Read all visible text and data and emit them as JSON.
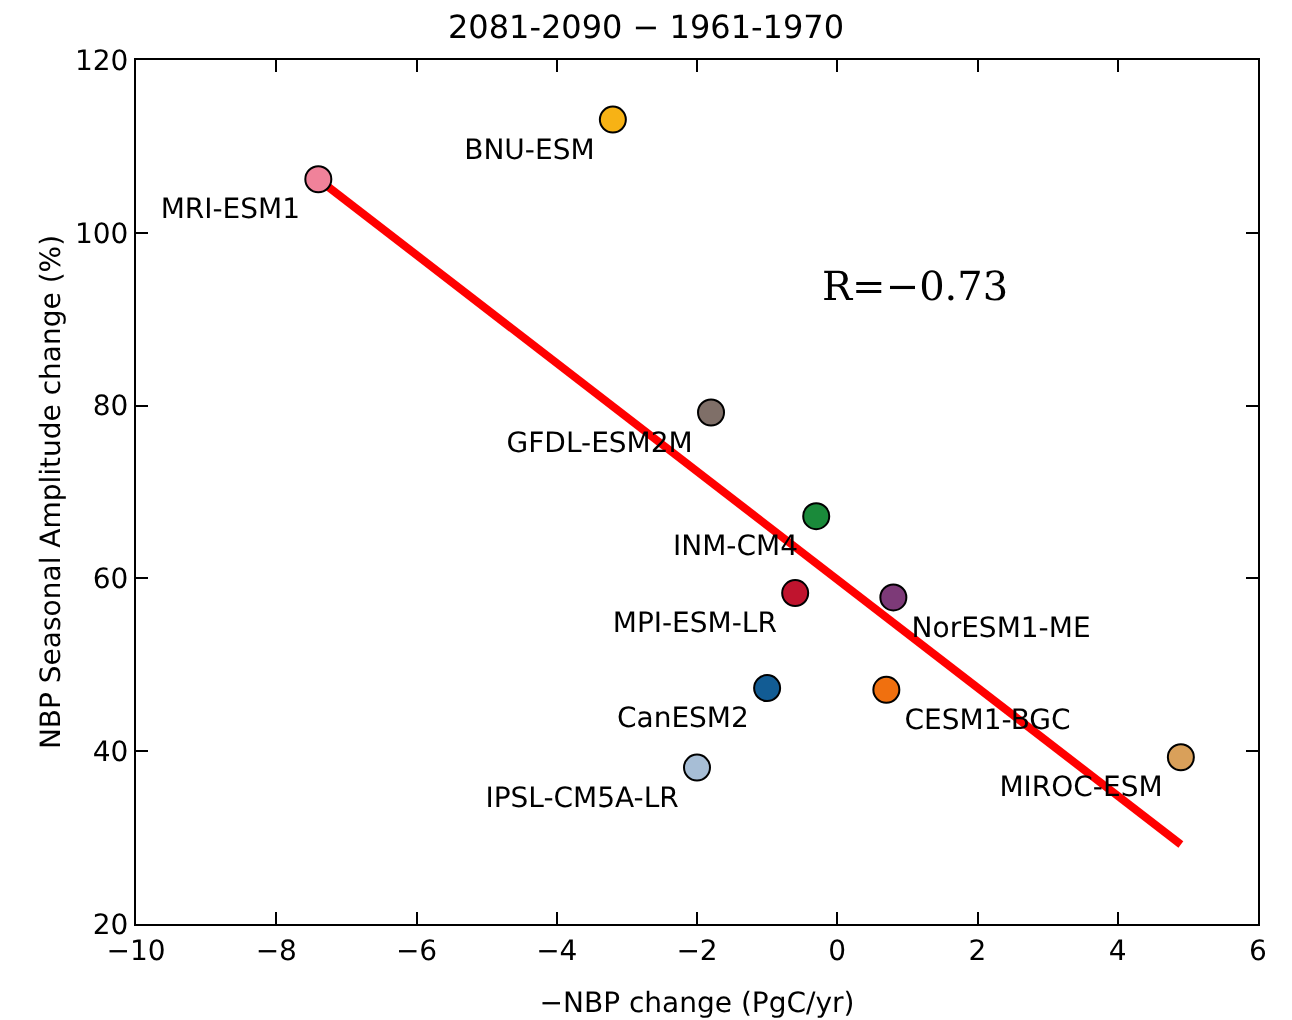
{
  "chart_data": {
    "type": "scatter",
    "title": "2081-2090 − 1961-1970",
    "xlabel": "−NBP change (PgC/yr)",
    "ylabel": "NBP Seasonal Amplitude change (%)",
    "xlim": [
      -10,
      6
    ],
    "xticks": [
      {
        "value": -10,
        "label": "−10"
      },
      {
        "value": -8,
        "label": "−8"
      },
      {
        "value": -6,
        "label": "−6"
      },
      {
        "value": -4,
        "label": "−4"
      },
      {
        "value": -2,
        "label": "−2"
      },
      0,
      2,
      4,
      6
    ],
    "ylim": [
      20,
      120
    ],
    "yticks": [
      20,
      40,
      60,
      80,
      100,
      120
    ],
    "grid": false,
    "legend": false,
    "marker": "circle",
    "series": [
      {
        "name": "MRI-ESM1",
        "color": "#f0829a",
        "x": [
          -7.4
        ],
        "values": [
          106.2
        ]
      },
      {
        "name": "BNU-ESM",
        "color": "#f7b215",
        "x": [
          -3.2
        ],
        "values": [
          113.1
        ]
      },
      {
        "name": "GFDL-ESM2M",
        "color": "#7f6f68",
        "x": [
          -1.8
        ],
        "values": [
          79.2
        ]
      },
      {
        "name": "INM-CM4",
        "color": "#1a8a3a",
        "x": [
          -0.3
        ],
        "values": [
          67.2
        ]
      },
      {
        "name": "MPI-ESM-LR",
        "color": "#c0142e",
        "x": [
          -0.6
        ],
        "values": [
          58.3
        ]
      },
      {
        "name": "NorESM1-ME",
        "color": "#7d3a78",
        "x": [
          0.8
        ],
        "values": [
          57.8
        ]
      },
      {
        "name": "CanESM2",
        "color": "#125c94",
        "x": [
          -1.0
        ],
        "values": [
          47.3
        ]
      },
      {
        "name": "CESM1-BGC",
        "color": "#f0700f",
        "x": [
          0.7
        ],
        "values": [
          47.1
        ]
      },
      {
        "name": "IPSL-CM5A-LR",
        "color": "#a7bed6",
        "x": [
          -2.0
        ],
        "values": [
          38.1
        ]
      },
      {
        "name": "MIROC-ESM",
        "color": "#d9a05a",
        "x": [
          4.9
        ],
        "values": [
          39.3
        ]
      },
      {
        "type": "line",
        "color": "#ff0000",
        "x": [
          -7.4,
          4.9
        ],
        "values": [
          106.2,
          29.2
        ],
        "line_style": "solid",
        "marker": "none"
      }
    ],
    "annotations": [
      "R=−0.73"
    ]
  }
}
